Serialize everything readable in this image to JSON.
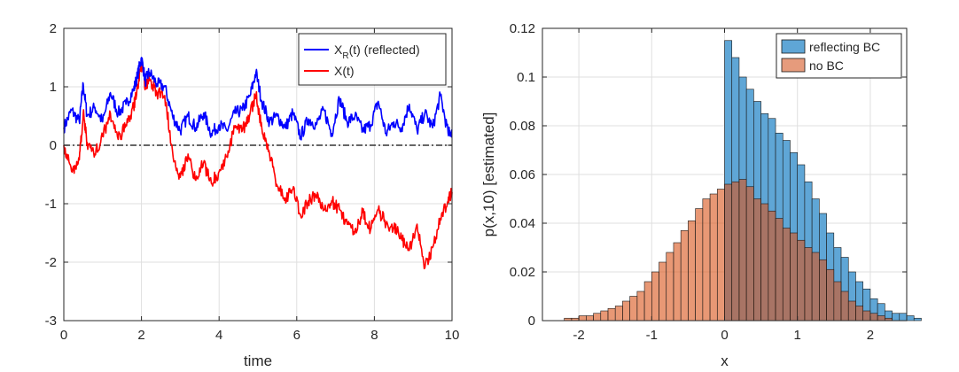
{
  "chart_data": [
    {
      "type": "line",
      "xlabel": "time",
      "ylabel": "",
      "xlim": [
        0,
        10
      ],
      "ylim": [
        -3,
        2
      ],
      "xticks": [
        "0",
        "2",
        "4",
        "6",
        "8",
        "10"
      ],
      "yticks": [
        "-3",
        "-2",
        "-1",
        "0",
        "1",
        "2"
      ],
      "grid": true,
      "legend_position": "top-right",
      "reference_line": {
        "y": 0,
        "style": "dash-dot",
        "color": "#333333"
      },
      "series": [
        {
          "name": "X_R(t) (reflected)",
          "legend_main": "X",
          "legend_sub": "R",
          "legend_rest": "(t) (reflected)",
          "color": "#0000ff",
          "x": [
            0,
            0.2,
            0.4,
            0.5,
            0.6,
            0.8,
            1.0,
            1.2,
            1.4,
            1.6,
            1.8,
            1.9,
            2.0,
            2.1,
            2.2,
            2.4,
            2.6,
            2.8,
            3.0,
            3.2,
            3.4,
            3.6,
            3.8,
            4.0,
            4.2,
            4.4,
            4.6,
            4.8,
            4.95,
            5.1,
            5.3,
            5.5,
            5.7,
            5.9,
            6.1,
            6.3,
            6.5,
            6.7,
            6.9,
            7.1,
            7.3,
            7.5,
            7.7,
            7.9,
            8.1,
            8.3,
            8.5,
            8.7,
            8.9,
            9.1,
            9.3,
            9.5,
            9.7,
            9.9,
            10.0
          ],
          "values": [
            0.3,
            0.6,
            0.4,
            1.05,
            0.5,
            0.65,
            0.4,
            0.9,
            0.55,
            0.7,
            0.95,
            1.2,
            1.5,
            1.1,
            1.25,
            1.05,
            1.0,
            0.5,
            0.25,
            0.5,
            0.3,
            0.55,
            0.2,
            0.35,
            0.25,
            0.55,
            0.6,
            0.85,
            1.25,
            0.75,
            0.4,
            0.5,
            0.3,
            0.55,
            0.15,
            0.45,
            0.35,
            0.6,
            0.2,
            0.8,
            0.4,
            0.5,
            0.25,
            0.35,
            0.75,
            0.2,
            0.4,
            0.3,
            0.7,
            0.25,
            0.55,
            0.3,
            0.85,
            0.2,
            0.25
          ]
        },
        {
          "name": "X(t)",
          "legend_main": "X(t)",
          "legend_sub": "",
          "legend_rest": "",
          "color": "#ff0000",
          "x": [
            0,
            0.2,
            0.4,
            0.5,
            0.6,
            0.8,
            1.0,
            1.2,
            1.4,
            1.6,
            1.8,
            1.9,
            2.0,
            2.1,
            2.2,
            2.4,
            2.6,
            2.8,
            3.0,
            3.2,
            3.4,
            3.6,
            3.8,
            4.0,
            4.2,
            4.4,
            4.6,
            4.8,
            4.95,
            5.1,
            5.3,
            5.5,
            5.7,
            5.9,
            6.1,
            6.3,
            6.5,
            6.7,
            6.9,
            7.1,
            7.3,
            7.5,
            7.7,
            7.9,
            8.1,
            8.3,
            8.5,
            8.7,
            8.9,
            9.1,
            9.3,
            9.5,
            9.7,
            9.9,
            10.0
          ],
          "values": [
            0.0,
            -0.45,
            -0.25,
            0.55,
            0.05,
            -0.15,
            0.15,
            0.55,
            0.1,
            0.35,
            0.65,
            1.0,
            1.4,
            1.0,
            1.15,
            0.9,
            0.85,
            -0.1,
            -0.55,
            -0.15,
            -0.6,
            -0.3,
            -0.65,
            -0.45,
            -0.2,
            0.3,
            0.25,
            0.55,
            0.85,
            0.3,
            -0.15,
            -0.7,
            -0.9,
            -0.75,
            -1.2,
            -0.95,
            -0.85,
            -1.1,
            -0.95,
            -1.1,
            -1.35,
            -1.45,
            -1.15,
            -1.45,
            -1.1,
            -1.35,
            -1.4,
            -1.6,
            -1.8,
            -1.35,
            -2.1,
            -1.75,
            -1.25,
            -0.95,
            -0.8
          ]
        }
      ]
    },
    {
      "type": "bar",
      "subtype": "histogram",
      "xlabel": "x",
      "ylabel": "p(x,10) [estimated]",
      "xlim": [
        -2.5,
        2.5
      ],
      "ylim": [
        0,
        0.12
      ],
      "xticks": [
        "-2",
        "-1",
        "0",
        "1",
        "2"
      ],
      "yticks": [
        "0",
        "0.02",
        "0.04",
        "0.06",
        "0.08",
        "0.1",
        "0.12"
      ],
      "grid": true,
      "legend_position": "top-right",
      "bin_width": 0.1,
      "series": [
        {
          "name": "reflecting BC",
          "color": "#0072bd",
          "fill": "#5fa6d6",
          "bin_start": 0.0,
          "values": [
            0.115,
            0.108,
            0.1,
            0.095,
            0.09,
            0.085,
            0.083,
            0.077,
            0.074,
            0.069,
            0.064,
            0.057,
            0.05,
            0.044,
            0.036,
            0.03,
            0.026,
            0.02,
            0.016,
            0.013,
            0.009,
            0.007,
            0.004,
            0.003,
            0.003,
            0.002,
            0.001
          ]
        },
        {
          "name": "no BC",
          "color": "#d95319",
          "fill": "#e69b7c",
          "bin_start": -2.2,
          "values": [
            0.001,
            0.001,
            0.002,
            0.002,
            0.003,
            0.004,
            0.005,
            0.006,
            0.008,
            0.01,
            0.012,
            0.016,
            0.02,
            0.024,
            0.028,
            0.032,
            0.037,
            0.041,
            0.046,
            0.05,
            0.052,
            0.054,
            0.056,
            0.057,
            0.058,
            0.055,
            0.05,
            0.048,
            0.045,
            0.042,
            0.038,
            0.036,
            0.033,
            0.03,
            0.028,
            0.025,
            0.021,
            0.016,
            0.012,
            0.008,
            0.006,
            0.004,
            0.003,
            0.002,
            0.001
          ]
        }
      ]
    }
  ]
}
